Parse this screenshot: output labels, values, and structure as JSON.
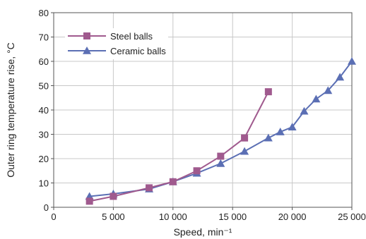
{
  "chart_data": {
    "type": "line",
    "xlabel": "Speed, min⁻¹",
    "ylabel": "Outer ring temperature rise, °C",
    "xlim": [
      0,
      25000
    ],
    "ylim": [
      0,
      80
    ],
    "x_ticks": [
      0,
      5000,
      10000,
      15000,
      20000,
      25000
    ],
    "x_tick_labels": [
      "0",
      "5 000",
      "10 000",
      "15 000",
      "20 000",
      "25 000"
    ],
    "y_ticks": [
      0,
      10,
      20,
      30,
      40,
      50,
      60,
      70,
      80
    ],
    "y_tick_labels": [
      "0",
      "10",
      "20",
      "30",
      "40",
      "50",
      "60",
      "70",
      "80"
    ],
    "grid": "major both axes",
    "legend_position": "top-left",
    "series": [
      {
        "name": "Steel balls",
        "color": "#a05a8e",
        "marker": "square",
        "x": [
          3000,
          5000,
          8000,
          10000,
          12000,
          14000,
          16000,
          18000
        ],
        "y": [
          2.5,
          4.5,
          8.0,
          10.5,
          15.0,
          21.0,
          28.5,
          47.5
        ]
      },
      {
        "name": "Ceramic balls",
        "color": "#5b6fb4",
        "marker": "triangle",
        "x": [
          3000,
          5000,
          8000,
          10000,
          12000,
          14000,
          16000,
          18000,
          19000,
          20000,
          21000,
          22000,
          23000,
          24000,
          25000
        ],
        "y": [
          4.5,
          5.5,
          7.5,
          10.5,
          14.0,
          18.0,
          23.0,
          28.5,
          31.0,
          33.0,
          39.5,
          44.5,
          48.0,
          53.5,
          60.0
        ]
      }
    ]
  }
}
